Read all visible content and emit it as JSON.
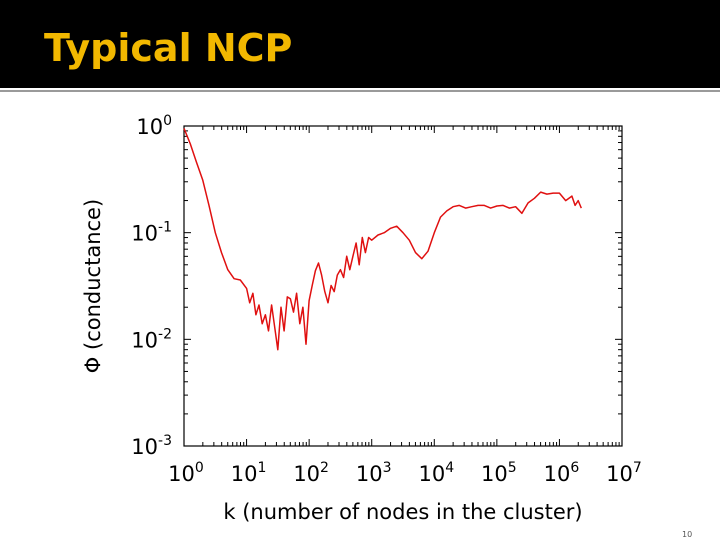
{
  "slide": {
    "title": "Typical NCP",
    "number": "10"
  },
  "chart_data": {
    "type": "line",
    "title": "",
    "xlabel": "k (number of nodes in the cluster)",
    "ylabel": "Φ (conductance)",
    "xscale": "log",
    "yscale": "log",
    "xlim": [
      1,
      10000000
    ],
    "ylim": [
      0.001,
      1
    ],
    "x_ticks": [
      {
        "value": 1,
        "base": "10",
        "exp": "0"
      },
      {
        "value": 10,
        "base": "10",
        "exp": "1"
      },
      {
        "value": 100,
        "base": "10",
        "exp": "2"
      },
      {
        "value": 1000,
        "base": "10",
        "exp": "3"
      },
      {
        "value": 10000,
        "base": "10",
        "exp": "4"
      },
      {
        "value": 100000,
        "base": "10",
        "exp": "5"
      },
      {
        "value": 1000000,
        "base": "10",
        "exp": "6"
      },
      {
        "value": 10000000,
        "base": "10",
        "exp": "7"
      }
    ],
    "y_ticks": [
      {
        "value": 1,
        "base": "10",
        "exp": "0"
      },
      {
        "value": 0.1,
        "base": "10",
        "exp": "-1"
      },
      {
        "value": 0.01,
        "base": "10",
        "exp": "-2"
      },
      {
        "value": 0.001,
        "base": "10",
        "exp": "-3"
      }
    ],
    "grid": false,
    "series": [
      {
        "color": "#e01010",
        "points": [
          [
            1,
            0.95
          ],
          [
            1.26,
            0.68
          ],
          [
            1.58,
            0.46
          ],
          [
            2.0,
            0.31
          ],
          [
            2.51,
            0.18
          ],
          [
            3.16,
            0.1
          ],
          [
            3.98,
            0.065
          ],
          [
            5.01,
            0.045
          ],
          [
            6.31,
            0.037
          ],
          [
            7.94,
            0.036
          ],
          [
            10,
            0.03
          ],
          [
            11.2,
            0.022
          ],
          [
            12.6,
            0.027
          ],
          [
            14.1,
            0.017
          ],
          [
            15.8,
            0.021
          ],
          [
            17.8,
            0.014
          ],
          [
            20,
            0.017
          ],
          [
            22.4,
            0.012
          ],
          [
            25.1,
            0.021
          ],
          [
            28.2,
            0.013
          ],
          [
            31.6,
            0.008
          ],
          [
            35.5,
            0.02
          ],
          [
            39.8,
            0.012
          ],
          [
            44.7,
            0.025
          ],
          [
            50.1,
            0.024
          ],
          [
            56.2,
            0.018
          ],
          [
            63.1,
            0.027
          ],
          [
            70.8,
            0.014
          ],
          [
            79.4,
            0.02
          ],
          [
            89.1,
            0.009
          ],
          [
            100,
            0.023
          ],
          [
            112,
            0.032
          ],
          [
            126,
            0.044
          ],
          [
            141,
            0.052
          ],
          [
            158,
            0.04
          ],
          [
            178,
            0.028
          ],
          [
            200,
            0.022
          ],
          [
            224,
            0.032
          ],
          [
            251,
            0.028
          ],
          [
            282,
            0.04
          ],
          [
            316,
            0.045
          ],
          [
            355,
            0.038
          ],
          [
            398,
            0.06
          ],
          [
            447,
            0.045
          ],
          [
            501,
            0.06
          ],
          [
            562,
            0.08
          ],
          [
            631,
            0.05
          ],
          [
            708,
            0.09
          ],
          [
            794,
            0.065
          ],
          [
            891,
            0.09
          ],
          [
            1000,
            0.085
          ],
          [
            1260,
            0.095
          ],
          [
            1585,
            0.1
          ],
          [
            2000,
            0.11
          ],
          [
            2512,
            0.115
          ],
          [
            3162,
            0.1
          ],
          [
            3981,
            0.085
          ],
          [
            5012,
            0.065
          ],
          [
            6310,
            0.057
          ],
          [
            7943,
            0.067
          ],
          [
            10000,
            0.1
          ],
          [
            12589,
            0.14
          ],
          [
            15849,
            0.16
          ],
          [
            19953,
            0.175
          ],
          [
            25119,
            0.18
          ],
          [
            31623,
            0.17
          ],
          [
            39811,
            0.175
          ],
          [
            50119,
            0.18
          ],
          [
            63096,
            0.18
          ],
          [
            79433,
            0.17
          ],
          [
            100000,
            0.178
          ],
          [
            125893,
            0.18
          ],
          [
            158489,
            0.17
          ],
          [
            199526,
            0.175
          ],
          [
            251189,
            0.152
          ],
          [
            316228,
            0.19
          ],
          [
            398107,
            0.21
          ],
          [
            501187,
            0.24
          ],
          [
            630957,
            0.23
          ],
          [
            794328,
            0.235
          ],
          [
            1000000,
            0.235
          ],
          [
            1258925,
            0.2
          ],
          [
            1584893,
            0.22
          ],
          [
            1778279,
            0.18
          ],
          [
            1995262,
            0.2
          ],
          [
            2238721,
            0.17
          ]
        ]
      }
    ]
  }
}
